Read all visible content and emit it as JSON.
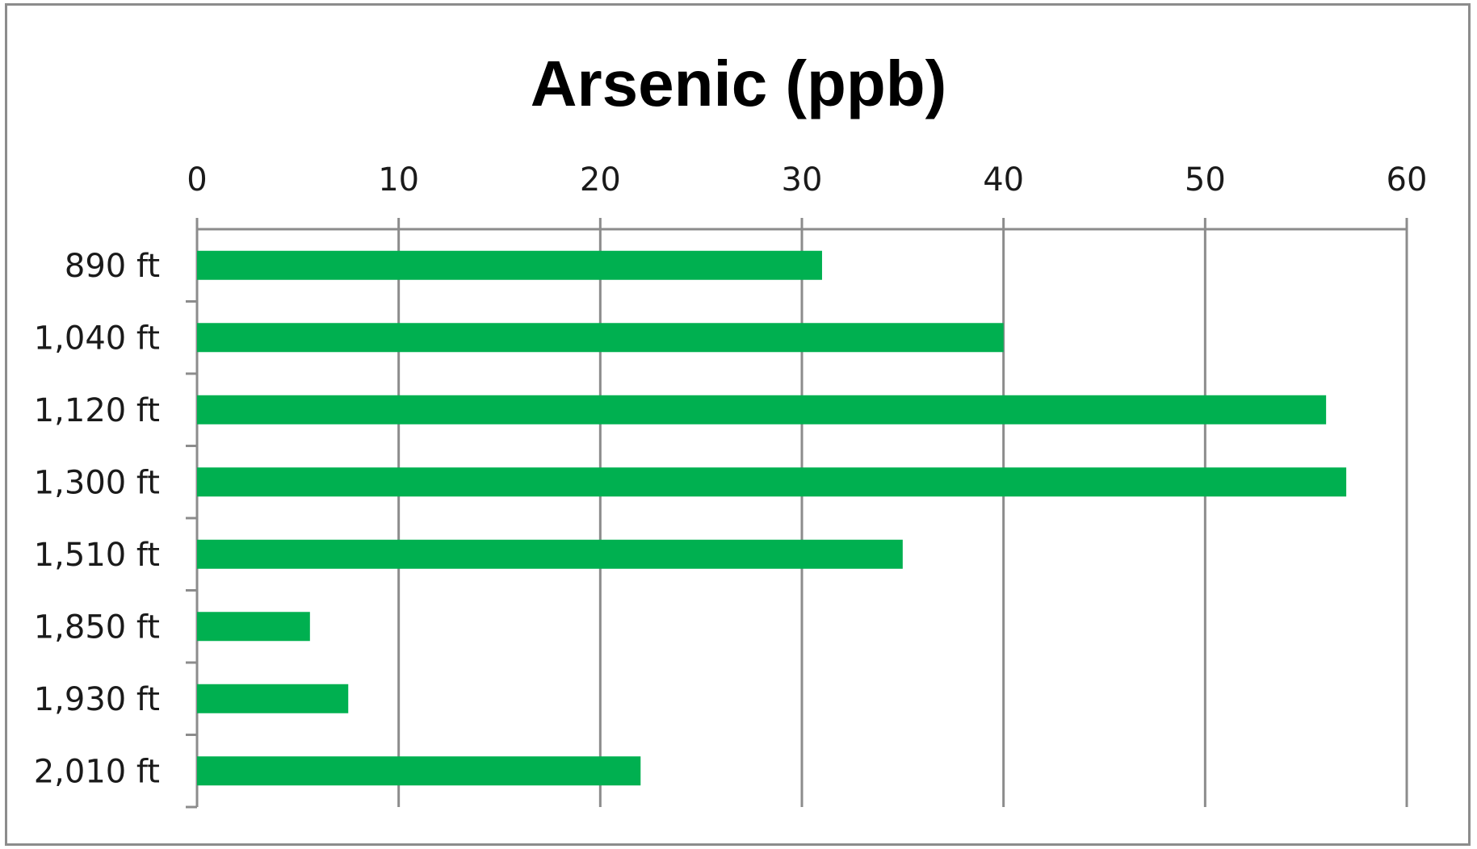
{
  "chart_data": {
    "type": "bar",
    "orientation": "horizontal",
    "title": "Arsenic (ppb)",
    "xlabel": "",
    "ylabel": "",
    "categories": [
      "890 ft",
      "1,040 ft",
      "1,120 ft",
      "1,300 ft",
      "1,510 ft",
      "1,850 ft",
      "1,930 ft",
      "2,010 ft"
    ],
    "values": [
      31,
      40,
      56,
      57,
      35,
      5.6,
      7.5,
      22
    ],
    "xlim": [
      0,
      60
    ],
    "x_ticks": [
      0,
      10,
      20,
      30,
      40,
      50,
      60
    ],
    "x_axis_position": "top",
    "grid": true,
    "legend": "none",
    "colors": {
      "bar": "#00b050",
      "grid": "#8c8c8c",
      "frame": "#8c8c8c"
    }
  }
}
